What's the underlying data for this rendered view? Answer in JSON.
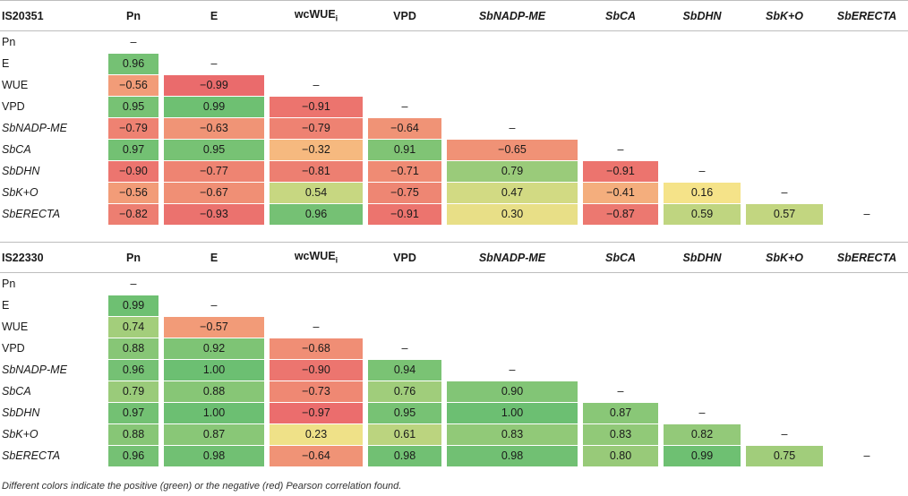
{
  "caption_note": "Different colors indicate the positive (green) or the negative (red) Pearson correlation found.",
  "tables": [
    {
      "genotype": "IS20351",
      "columns": [
        "Pn",
        "E",
        "wcWUE",
        "VPD",
        "SbNADP-ME",
        "SbCA",
        "SbDHN",
        "SbK+O",
        "SbERECTA"
      ],
      "column_italic": [
        false,
        false,
        false,
        false,
        true,
        true,
        true,
        true,
        true
      ],
      "column_subscript": [
        "",
        "",
        "i",
        "",
        "",
        "",
        "",
        "",
        ""
      ],
      "rows": [
        {
          "label": "Pn",
          "italic": false,
          "values": [
            "–"
          ]
        },
        {
          "label": "E",
          "italic": false,
          "values": [
            "0.96",
            "–"
          ]
        },
        {
          "label": "WUE",
          "italic": false,
          "values": [
            "−0.56",
            "−0.99",
            "–"
          ]
        },
        {
          "label": "VPD",
          "italic": false,
          "values": [
            "0.95",
            "0.99",
            "−0.91",
            "–"
          ]
        },
        {
          "label": "SbNADP-ME",
          "italic": true,
          "values": [
            "−0.79",
            "−0.63",
            "−0.79",
            "−0.64",
            "–"
          ]
        },
        {
          "label": "SbCA",
          "italic": true,
          "values": [
            "0.97",
            "0.95",
            "−0.32",
            "0.91",
            "−0.65",
            "–"
          ]
        },
        {
          "label": "SbDHN",
          "italic": true,
          "values": [
            "−0.90",
            "−0.77",
            "−0.81",
            "−0.71",
            "0.79",
            "−0.91",
            "–"
          ]
        },
        {
          "label": "SbK+O",
          "italic": true,
          "values": [
            "−0.56",
            "−0.67",
            "0.54",
            "−0.75",
            "0.47",
            "−0.41",
            "0.16",
            "–"
          ]
        },
        {
          "label": "SbERECTA",
          "italic": true,
          "values": [
            "−0.82",
            "−0.93",
            "0.96",
            "−0.91",
            "0.30",
            "−0.87",
            "0.59",
            "0.57",
            "–"
          ]
        }
      ]
    },
    {
      "genotype": "IS22330",
      "columns": [
        "Pn",
        "E",
        "wcWUE",
        "VPD",
        "SbNADP-ME",
        "SbCA",
        "SbDHN",
        "SbK+O",
        "SbERECTA"
      ],
      "column_italic": [
        false,
        false,
        false,
        false,
        true,
        true,
        true,
        true,
        true
      ],
      "column_subscript": [
        "",
        "",
        "i",
        "",
        "",
        "",
        "",
        "",
        ""
      ],
      "rows": [
        {
          "label": "Pn",
          "italic": false,
          "values": [
            "–"
          ]
        },
        {
          "label": "E",
          "italic": false,
          "values": [
            "0.99",
            "–"
          ]
        },
        {
          "label": "WUE",
          "italic": false,
          "values": [
            "0.74",
            "−0.57",
            "–"
          ]
        },
        {
          "label": "VPD",
          "italic": false,
          "values": [
            "0.88",
            "0.92",
            "−0.68",
            "–"
          ]
        },
        {
          "label": "SbNADP-ME",
          "italic": true,
          "values": [
            "0.96",
            "1.00",
            "−0.90",
            "0.94",
            "–"
          ]
        },
        {
          "label": "SbCA",
          "italic": true,
          "values": [
            "0.79",
            "0.88",
            "−0.73",
            "0.76",
            "0.90",
            "–"
          ]
        },
        {
          "label": "SbDHN",
          "italic": true,
          "values": [
            "0.97",
            "1.00",
            "−0.97",
            "0.95",
            "1.00",
            "0.87",
            "–"
          ]
        },
        {
          "label": "SbK+O",
          "italic": true,
          "values": [
            "0.88",
            "0.87",
            "0.23",
            "0.61",
            "0.83",
            "0.83",
            "0.82",
            "–"
          ]
        },
        {
          "label": "SbERECTA",
          "italic": true,
          "values": [
            "0.96",
            "0.98",
            "−0.64",
            "0.98",
            "0.98",
            "0.80",
            "0.99",
            "0.75",
            "–"
          ]
        }
      ]
    }
  ],
  "color_scale": {
    "negative_strong": "#ea6a6c",
    "neutral": "#fde58a",
    "positive_strong": "#6cbf72"
  }
}
